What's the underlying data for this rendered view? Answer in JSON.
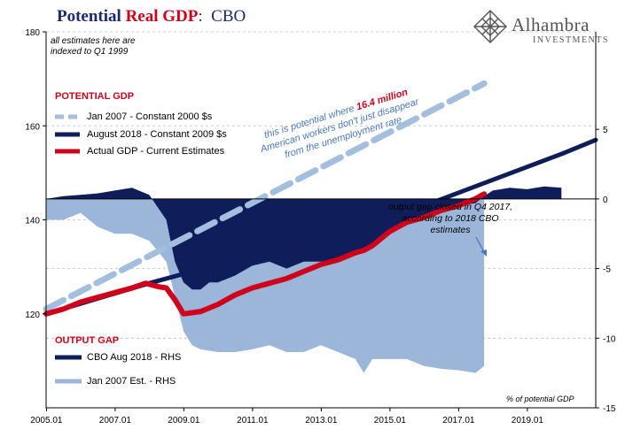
{
  "header": {
    "title_part1": "Potential",
    "title_part2": "Real GDP",
    "title_part3": ":",
    "title_part4": "CBO"
  },
  "brand": {
    "name": "Alhambra",
    "sub": "INVESTMENTS"
  },
  "notes": {
    "index_line1": "all estimates here are",
    "index_line2": "indexed to Q1 1999",
    "units": "% of potential GDP"
  },
  "sections": {
    "potential": "POTENTIAL GDP",
    "gap": "OUTPUT GAP"
  },
  "legend": {
    "jan2007": "Jan 2007 - Constant 2000 $s",
    "aug2018": "August 2018 - Constant 2009 $s",
    "actual": "Actual GDP - Current Estimates",
    "gap_aug2018": "CBO Aug 2018 - RHS",
    "gap_jan2007": "Jan 2007 Est. - RHS"
  },
  "annotations": {
    "potential_line1a": "this is potential where ",
    "potential_line1b": "16.4 million",
    "potential_line2": "American workers don't just disappear",
    "potential_line3": "from the unemployment rate",
    "gap_closed_line1": "output gap  closed in Q4 2017,",
    "gap_closed_line2": "according to 2018 CBO",
    "gap_closed_line3": "estimates"
  },
  "colors": {
    "navy": "#0f1e5a",
    "light_blue": "#9bb6d9",
    "dash_blue": "#a4bede",
    "red": "#d0021b",
    "annotation_blue": "#4a78c0",
    "grid": "#bdbdbd"
  },
  "chart_data": {
    "type": "line",
    "x_range": [
      2005.0,
      2021.0
    ],
    "x_ticks": [
      "2005.01",
      "2007.01",
      "2009.01",
      "2011.01",
      "2013.01",
      "2015.01",
      "2017.01",
      "2019.01"
    ],
    "left_axis": {
      "range": [
        100,
        180
      ],
      "ticks": [
        "120",
        "140",
        "160",
        "180"
      ]
    },
    "right_axis": {
      "range": [
        -15,
        12
      ],
      "ticks": [
        "-15",
        "-10",
        "-5",
        "0",
        "5"
      ]
    },
    "series": [
      {
        "name": "Jan 2007 - Constant 2000 $s",
        "axis": "left",
        "style": "dashed",
        "x": [
          2005.0,
          2017.75
        ],
        "y": [
          121,
          169
        ]
      },
      {
        "name": "August 2018 - Constant 2009 $s",
        "axis": "left",
        "style": "solid",
        "x": [
          2005.0,
          2008.0,
          2010.0,
          2012.0,
          2014.0,
          2016.0,
          2018.0,
          2020.0,
          2021.0
        ],
        "y": [
          120,
          126.5,
          130.5,
          134,
          138.5,
          143,
          148.5,
          154,
          157
        ]
      },
      {
        "name": "Actual GDP - Current Estimates",
        "axis": "left",
        "style": "solid",
        "x": [
          2005.0,
          2005.5,
          2006.0,
          2006.5,
          2007.0,
          2007.5,
          2007.9,
          2008.25,
          2008.5,
          2008.75,
          2009.0,
          2009.5,
          2010.0,
          2010.5,
          2011.0,
          2011.5,
          2012.0,
          2012.5,
          2013.0,
          2013.5,
          2014.0,
          2014.25,
          2014.5,
          2015.0,
          2015.5,
          2016.0,
          2016.5,
          2017.0,
          2017.5,
          2017.75
        ],
        "y": [
          120,
          121,
          122.5,
          123.5,
          124.5,
          125.5,
          126.5,
          125.8,
          125.5,
          123,
          120,
          120.5,
          122,
          124,
          125.5,
          126.5,
          127.5,
          129,
          130.5,
          131.5,
          133,
          133.5,
          134.5,
          137.5,
          139.5,
          140.5,
          142,
          143,
          144.5,
          145.5
        ]
      },
      {
        "name": "CBO Aug 2018 - RHS",
        "axis": "right",
        "style": "area",
        "x": [
          2005.0,
          2005.5,
          2006.0,
          2006.5,
          2007.0,
          2007.5,
          2008.0,
          2008.5,
          2008.75,
          2009.0,
          2009.25,
          2009.5,
          2009.75,
          2010.0,
          2010.5,
          2011.0,
          2011.5,
          2012.0,
          2012.5,
          2013.0,
          2013.5,
          2014.0,
          2014.5,
          2015.0,
          2015.5,
          2016.0,
          2016.5,
          2017.0,
          2017.5,
          2017.75,
          2018.0,
          2018.5,
          2019.0,
          2019.5,
          2020.0
        ],
        "y": [
          0,
          0.2,
          0.3,
          0.4,
          0.6,
          0.8,
          0.3,
          -1.5,
          -4.5,
          -6.0,
          -6.5,
          -6.5,
          -6.0,
          -6.0,
          -5.5,
          -4.8,
          -4.5,
          -5.0,
          -4.5,
          -4.5,
          -4.3,
          -3.8,
          -3.5,
          -2.5,
          -1.8,
          -1.5,
          -1.0,
          -0.5,
          -0.3,
          0.2,
          0.6,
          0.8,
          0.7,
          0.9,
          0.8
        ]
      },
      {
        "name": "Jan 2007 Est. - RHS",
        "axis": "right",
        "style": "area",
        "x": [
          2005.0,
          2005.5,
          2006.0,
          2006.5,
          2007.0,
          2007.5,
          2008.0,
          2008.5,
          2008.75,
          2009.0,
          2009.25,
          2009.5,
          2010.0,
          2010.5,
          2011.0,
          2011.5,
          2012.0,
          2012.5,
          2013.0,
          2013.5,
          2014.0,
          2014.25,
          2014.5,
          2015.0,
          2015.5,
          2016.0,
          2016.5,
          2017.0,
          2017.5,
          2017.75
        ],
        "y": [
          -1.5,
          -1.5,
          -1.0,
          -2.0,
          -2.5,
          -2.5,
          -3.0,
          -4.5,
          -7.0,
          -9.5,
          -10.5,
          -10.8,
          -11.0,
          -11.0,
          -10.8,
          -10.5,
          -11.0,
          -11.0,
          -10.5,
          -11.0,
          -11.5,
          -12.5,
          -11.5,
          -11.5,
          -11.5,
          -12.0,
          -12.2,
          -12.3,
          -12.5,
          -12.0
        ]
      }
    ]
  }
}
